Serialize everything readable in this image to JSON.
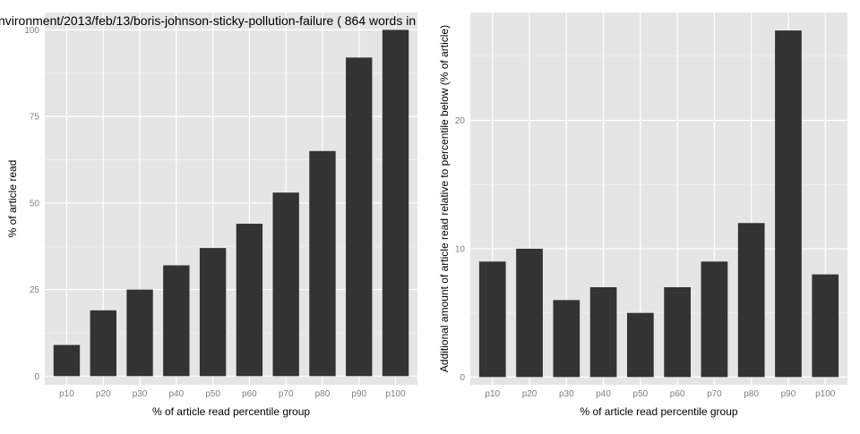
{
  "page_title": "nvironment/2013/feb/13/boris-johnson-sticky-pollution-failure ( 864 words in",
  "colors": {
    "panel_background": "#e5e5e5",
    "grid_major": "#ffffff",
    "grid_minor": "#f2f2f2",
    "bar_fill": "#333333",
    "tick_text": "#7f7f7f",
    "axis_title_text": "#000000"
  },
  "chart_data": [
    {
      "type": "bar",
      "title": "",
      "categories": [
        "p10",
        "p20",
        "p30",
        "p40",
        "p50",
        "p60",
        "p70",
        "p80",
        "p90",
        "p100"
      ],
      "values": [
        9,
        19,
        25,
        32,
        37,
        44,
        53,
        65,
        92,
        100
      ],
      "xlabel": "% of article read percentile group",
      "ylabel": "% of article read",
      "ylim": [
        -2.5,
        105
      ],
      "yticks": [
        0,
        25,
        50,
        75,
        100
      ],
      "grid": true,
      "legend": "none"
    },
    {
      "type": "bar",
      "title": "",
      "categories": [
        "p10",
        "p20",
        "p30",
        "p40",
        "p50",
        "p60",
        "p70",
        "p80",
        "p90",
        "p100"
      ],
      "values": [
        9,
        10,
        6,
        7,
        5,
        7,
        9,
        12,
        27,
        8
      ],
      "xlabel": "% of article read percentile group",
      "ylabel": "Additional amount of article read relative to percentile below (% of article)",
      "ylim": [
        -0.6,
        28.4
      ],
      "yticks": [
        0,
        10,
        20
      ],
      "grid": true,
      "legend": "none"
    }
  ]
}
